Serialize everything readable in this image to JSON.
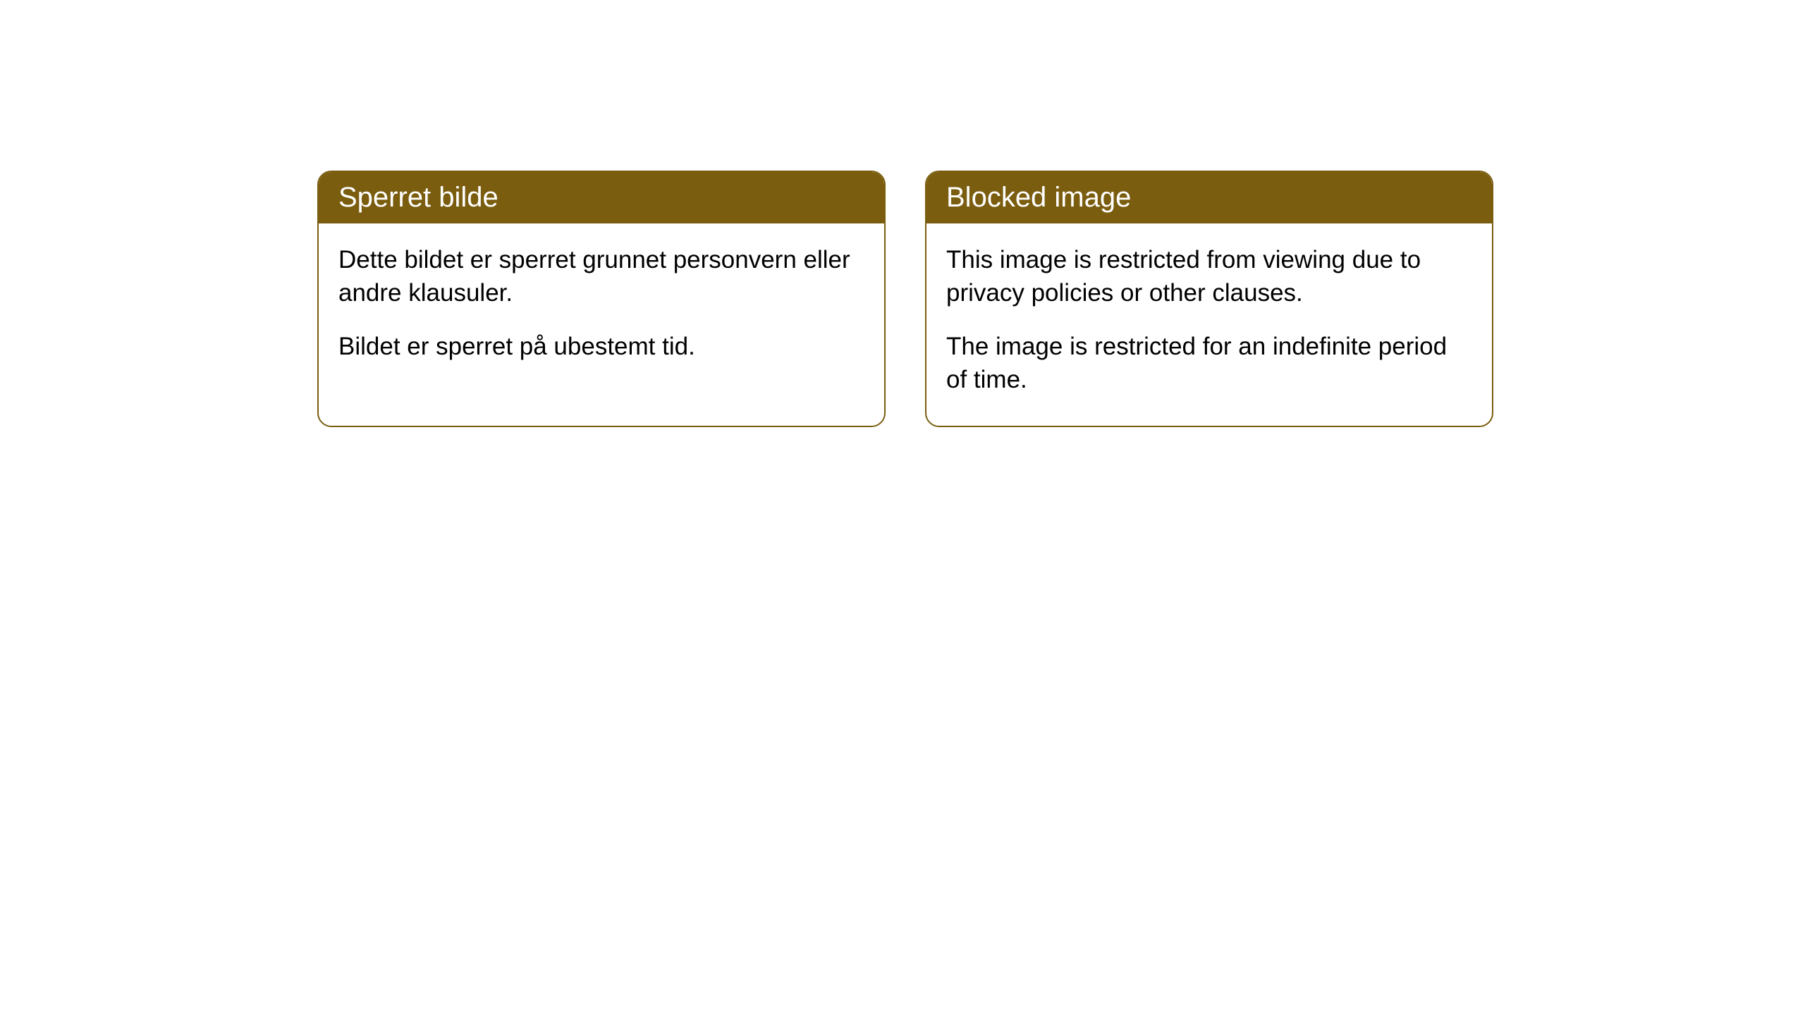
{
  "cards": [
    {
      "title": "Sperret bilde",
      "paragraph1": "Dette bildet er sperret grunnet personvern eller andre klausuler.",
      "paragraph2": "Bildet er sperret på ubestemt tid."
    },
    {
      "title": "Blocked image",
      "paragraph1": "This image is restricted from viewing due to privacy policies or other clauses.",
      "paragraph2": "The image is restricted for an indefinite period of time."
    }
  ],
  "style": {
    "header_bg_color": "#7a5d0f",
    "header_text_color": "#ffffff",
    "border_color": "#7a5d0f",
    "body_bg_color": "#ffffff",
    "body_text_color": "#000000",
    "border_radius": 20,
    "title_fontsize": 40,
    "body_fontsize": 35
  }
}
